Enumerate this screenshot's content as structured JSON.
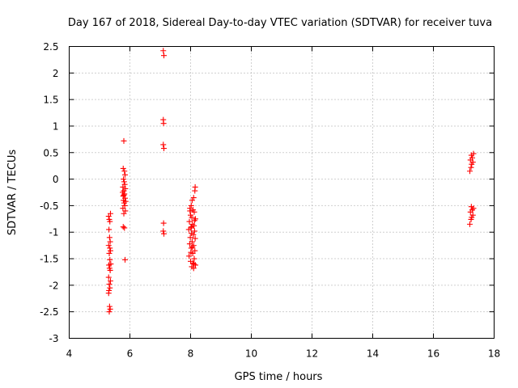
{
  "chart_data": {
    "type": "scatter",
    "title": "Day 167 of 2018, Sidereal Day-to-day VTEC variation (SDTVAR) for receiver tuva",
    "xlabel": "GPS time / hours",
    "ylabel": "SDTVAR / TECUs",
    "xlim": [
      4,
      18
    ],
    "ylim": [
      -3,
      2.5
    ],
    "xticks": [
      4,
      6,
      8,
      10,
      12,
      14,
      16,
      18
    ],
    "yticks": [
      -3,
      -2.5,
      -2,
      -1.5,
      -1,
      -0.5,
      0,
      0.5,
      1,
      1.5,
      2,
      2.5
    ],
    "xtick_labels": [
      "4",
      "6",
      "8",
      "10",
      "12",
      "14",
      "16",
      "18"
    ],
    "ytick_labels": [
      "-3",
      "-2.5",
      "-2",
      "-1.5",
      "-1",
      "-0.5",
      "0",
      "0.5",
      "1",
      "1.5",
      "2",
      "2.5"
    ],
    "grid": true,
    "marker": "+",
    "color": "#ff0000",
    "series": [
      {
        "name": "SDTVAR",
        "points": [
          [
            5.3,
            -0.7
          ],
          [
            5.32,
            -0.76
          ],
          [
            5.36,
            -0.65
          ],
          [
            5.34,
            -0.8
          ],
          [
            5.31,
            -0.95
          ],
          [
            5.33,
            -1.1
          ],
          [
            5.35,
            -1.18
          ],
          [
            5.3,
            -1.25
          ],
          [
            5.36,
            -1.35
          ],
          [
            5.32,
            -1.4
          ],
          [
            5.34,
            -1.52
          ],
          [
            5.31,
            -1.62
          ],
          [
            5.33,
            -1.68
          ],
          [
            5.35,
            -1.72
          ],
          [
            5.3,
            -1.85
          ],
          [
            5.36,
            -1.92
          ],
          [
            5.32,
            -1.98
          ],
          [
            5.34,
            -2.05
          ],
          [
            5.31,
            -2.1
          ],
          [
            5.3,
            -2.15
          ],
          [
            5.33,
            -2.4
          ],
          [
            5.35,
            -2.45
          ],
          [
            5.32,
            -2.5
          ],
          [
            5.34,
            -1.3
          ],
          [
            5.37,
            -1.6
          ],
          [
            5.8,
            0.72
          ],
          [
            5.78,
            0.2
          ],
          [
            5.82,
            0.15
          ],
          [
            5.84,
            0.08
          ],
          [
            5.79,
            0.0
          ],
          [
            5.81,
            -0.05
          ],
          [
            5.83,
            -0.1
          ],
          [
            5.77,
            -0.15
          ],
          [
            5.85,
            -0.18
          ],
          [
            5.8,
            -0.22
          ],
          [
            5.82,
            -0.28
          ],
          [
            5.78,
            -0.32
          ],
          [
            5.84,
            -0.36
          ],
          [
            5.79,
            -0.4
          ],
          [
            5.81,
            -0.45
          ],
          [
            5.83,
            -0.5
          ],
          [
            5.77,
            -0.55
          ],
          [
            5.85,
            -0.6
          ],
          [
            5.8,
            -0.65
          ],
          [
            5.78,
            -0.9
          ],
          [
            5.82,
            -0.92
          ],
          [
            5.84,
            -1.52
          ],
          [
            5.8,
            -0.3
          ],
          [
            5.86,
            -0.42
          ],
          [
            5.76,
            -0.25
          ],
          [
            7.1,
            2.42
          ],
          [
            7.12,
            2.33
          ],
          [
            7.1,
            1.12
          ],
          [
            7.11,
            1.05
          ],
          [
            7.1,
            0.65
          ],
          [
            7.12,
            0.58
          ],
          [
            7.11,
            -0.83
          ],
          [
            7.1,
            -0.98
          ],
          [
            7.12,
            -1.03
          ],
          [
            8.15,
            -0.15
          ],
          [
            8.14,
            -0.22
          ],
          [
            8.05,
            -0.4
          ],
          [
            8.1,
            -0.35
          ],
          [
            8.02,
            -0.5
          ],
          [
            7.98,
            -0.55
          ],
          [
            8.08,
            -0.58
          ],
          [
            8.12,
            -0.62
          ],
          [
            8.0,
            -0.68
          ],
          [
            8.04,
            -0.72
          ],
          [
            8.16,
            -0.75
          ],
          [
            7.96,
            -0.8
          ],
          [
            8.06,
            -0.85
          ],
          [
            8.11,
            -0.88
          ],
          [
            8.01,
            -0.92
          ],
          [
            7.94,
            -0.95
          ],
          [
            8.13,
            -0.98
          ],
          [
            8.03,
            -1.02
          ],
          [
            8.09,
            -1.05
          ],
          [
            7.99,
            -1.1
          ],
          [
            8.15,
            -1.12
          ],
          [
            8.05,
            -1.18
          ],
          [
            7.97,
            -1.22
          ],
          [
            8.1,
            -1.25
          ],
          [
            8.02,
            -1.3
          ],
          [
            8.14,
            -1.35
          ],
          [
            8.07,
            -1.4
          ],
          [
            7.95,
            -1.45
          ],
          [
            8.12,
            -1.5
          ],
          [
            8.0,
            -1.55
          ],
          [
            8.08,
            -1.58
          ],
          [
            8.16,
            -1.62
          ],
          [
            8.04,
            -1.65
          ],
          [
            8.1,
            -1.68
          ],
          [
            7.98,
            -0.6
          ],
          [
            8.06,
            -1.28
          ],
          [
            8.13,
            -0.78
          ],
          [
            8.01,
            -1.38
          ],
          [
            8.11,
            -1.6
          ],
          [
            8.03,
            -0.9
          ],
          [
            17.25,
            0.45
          ],
          [
            17.28,
            0.4
          ],
          [
            17.22,
            0.36
          ],
          [
            17.3,
            0.32
          ],
          [
            17.26,
            0.28
          ],
          [
            17.24,
            0.22
          ],
          [
            17.32,
            0.48
          ],
          [
            17.2,
            0.15
          ],
          [
            17.25,
            -0.52
          ],
          [
            17.28,
            -0.58
          ],
          [
            17.22,
            -0.62
          ],
          [
            17.3,
            -0.68
          ],
          [
            17.26,
            -0.72
          ],
          [
            17.24,
            -0.76
          ],
          [
            17.2,
            -0.85
          ],
          [
            17.32,
            -0.55
          ]
        ]
      }
    ]
  }
}
